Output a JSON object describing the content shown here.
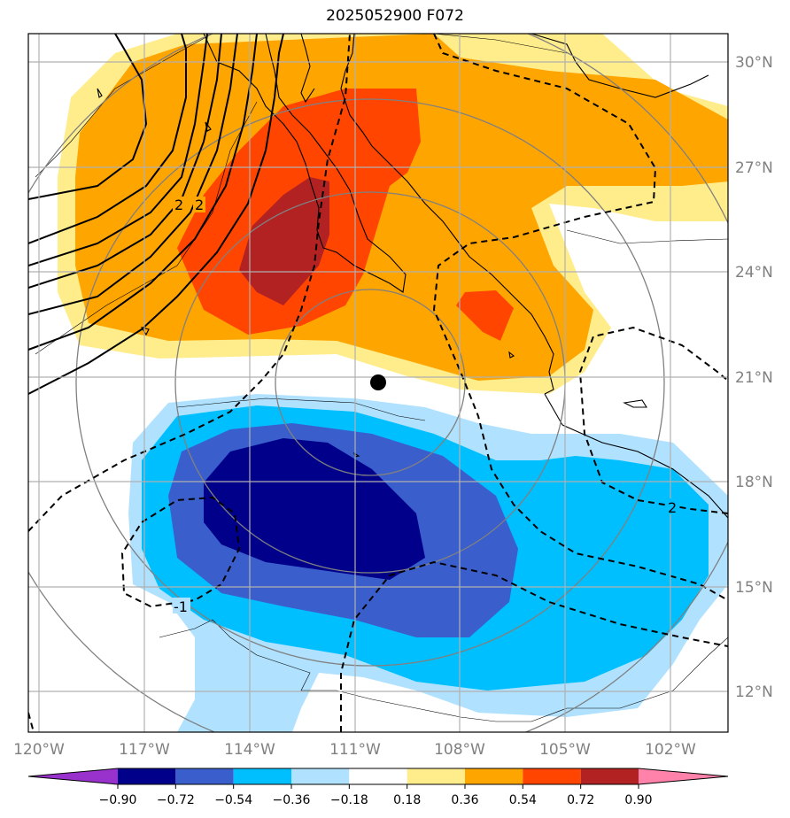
{
  "title": "2025052900 F072",
  "map": {
    "lon_range": [
      -120.2,
      -99.5
    ],
    "lat_range": [
      10.8,
      30.8
    ],
    "lon_ticks": [
      "120°W",
      "117°W",
      "114°W",
      "111°W",
      "108°W",
      "105°W",
      "102°W"
    ],
    "lat_ticks": [
      "12°N",
      "15°N",
      "18°N",
      "21°N",
      "24°N",
      "27°N",
      "30°N"
    ],
    "center_marker": {
      "lon": -110.4,
      "lat": 20.8
    },
    "contour_labels": [
      "2",
      "2",
      "-1",
      "2"
    ]
  },
  "colorbar": {
    "tick_labels": [
      "−0.90",
      "−0.72",
      "−0.54",
      "−0.36",
      "−0.18",
      "0.18",
      "0.36",
      "0.54",
      "0.72",
      "0.90"
    ],
    "colors": [
      "#9932CC",
      "#00008B",
      "#3A5FCD",
      "#00BFFF",
      "#B0E2FF",
      "#FFFFFF",
      "#FFEC8B",
      "#FFA500",
      "#FF4500",
      "#B22222",
      "#FF82AB"
    ]
  }
}
